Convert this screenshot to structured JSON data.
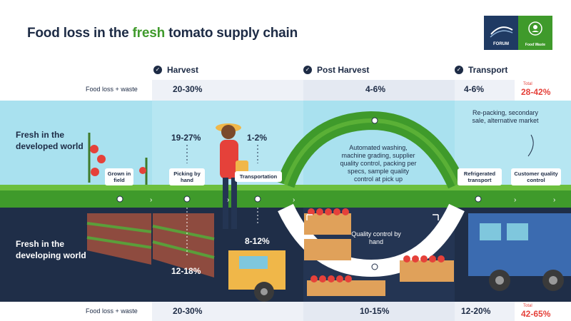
{
  "title": {
    "prefix": "Food loss in the ",
    "accent": "fresh",
    "suffix": " tomato supply chain"
  },
  "logos": {
    "wef": "FORUM",
    "food": "Food Waste"
  },
  "stages": [
    {
      "label": "Harvest"
    },
    {
      "label": "Post Harvest"
    },
    {
      "label": "Transport"
    }
  ],
  "developed_row": {
    "title": "Fresh in the developed world",
    "loss_label": "Food loss + waste",
    "harvest": "20-30%",
    "post_harvest": "4-6%",
    "transport": "4-6%",
    "total_label": "Total",
    "total": "28-42%"
  },
  "developing_row": {
    "title": "Fresh in the developing world",
    "loss_label": "Food loss + waste",
    "harvest": "20-30%",
    "post_harvest": "10-15%",
    "transport": "12-20%",
    "total_label": "Total",
    "total": "42-65%"
  },
  "steps": {
    "grown": "Grown in field",
    "picking": "Picking by hand",
    "transportation": "Transportation",
    "refrigerated": "Refrigerated transport",
    "customer": "Customer quality control"
  },
  "values": {
    "picking_developed": "19-27%",
    "transport_developed": "1-2%",
    "transport_developing": "8-12%",
    "picking_developing": "12-18%"
  },
  "notes": {
    "automated": "Automated washing, machine grading, supplier quality control, packing per specs, sample quality control at pick up",
    "quality_hand": "Quality control by hand",
    "repacking": "Re-packing, secondary sale, alternative market"
  },
  "colors": {
    "navy": "#1d2b45",
    "green": "#3f9a2b",
    "lightblue": "#a9e1ef",
    "darkbg": "#1f2e48",
    "red": "#e5413a"
  }
}
